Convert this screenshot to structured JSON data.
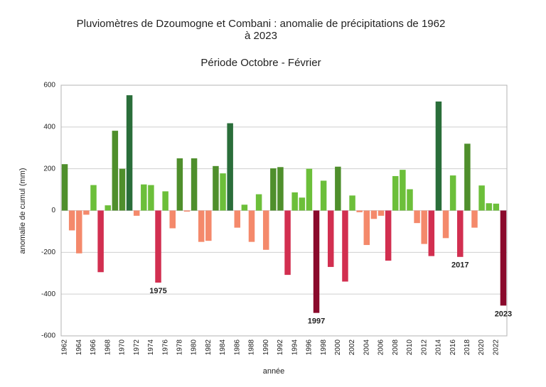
{
  "chart_data": {
    "type": "bar",
    "title": [
      "Pluviomètres de Dzoumogne et Combani : anomalie de précipitations de 1962",
      "à 2023"
    ],
    "subtitle": "Période Octobre - Février",
    "x_label": "année",
    "y_label": "anomalie de cumul (mm)",
    "categories": [
      "1962",
      null,
      "1964",
      null,
      "1966",
      null,
      "1968",
      null,
      "1970",
      null,
      "1972",
      null,
      "1974",
      null,
      "1976",
      null,
      "1978",
      null,
      "1980",
      null,
      "1982",
      null,
      "1984",
      null,
      "1986",
      null,
      "1988",
      null,
      "1990",
      null,
      "1992",
      null,
      "1994",
      null,
      "1996",
      null,
      "1998",
      null,
      "2000",
      null,
      "2002",
      null,
      "2004",
      null,
      "2006",
      null,
      "2008",
      null,
      "2010",
      null,
      "2012",
      null,
      "2014",
      null,
      "2016",
      null,
      "2018",
      null,
      "2020",
      null,
      "2022",
      null
    ],
    "values": [
      222,
      -95,
      -205,
      -20,
      122,
      -295,
      25,
      382,
      200,
      552,
      -25,
      125,
      122,
      -345,
      92,
      -85,
      250,
      -5,
      250,
      -150,
      -145,
      213,
      178,
      418,
      -82,
      28,
      -150,
      78,
      -188,
      202,
      208,
      -308,
      87,
      62,
      200,
      -490,
      143,
      -270,
      210,
      -340,
      72,
      -8,
      -165,
      -40,
      -25,
      -240,
      165,
      195,
      102,
      -60,
      -160,
      -218,
      522,
      -132,
      168,
      -222,
      320,
      -82,
      120,
      35,
      33,
      -455
    ],
    "colors": [
      "#4f8f2c",
      "#f4896b",
      "#f4896b",
      "#f4896b",
      "#6cbf3a",
      "#d22f50",
      "#6cbf3a",
      "#4f8f2c",
      "#4f8f2c",
      "#2a6e3a",
      "#f4896b",
      "#6cbf3a",
      "#6cbf3a",
      "#d22f50",
      "#6cbf3a",
      "#f4896b",
      "#4f8f2c",
      "#f4896b",
      "#4f8f2c",
      "#f4896b",
      "#f4896b",
      "#4f8f2c",
      "#6cbf3a",
      "#2a6e3a",
      "#f4896b",
      "#6cbf3a",
      "#f4896b",
      "#6cbf3a",
      "#f4896b",
      "#4f8f2c",
      "#4f8f2c",
      "#d22f50",
      "#6cbf3a",
      "#6cbf3a",
      "#6cbf3a",
      "#8a0a2c",
      "#6cbf3a",
      "#d22f50",
      "#4f8f2c",
      "#d22f50",
      "#6cbf3a",
      "#f4896b",
      "#f4896b",
      "#f4896b",
      "#f4896b",
      "#d22f50",
      "#6cbf3a",
      "#6cbf3a",
      "#6cbf3a",
      "#f4896b",
      "#f4896b",
      "#d22f50",
      "#2a6e3a",
      "#f4896b",
      "#6cbf3a",
      "#d22f50",
      "#4f8f2c",
      "#f4896b",
      "#6cbf3a",
      "#6cbf3a",
      "#6cbf3a",
      "#8a0a2c"
    ],
    "annotations": [
      "1975",
      "1997",
      "2017",
      "2023"
    ],
    "ylim": [
      -600,
      600
    ],
    "yticks": [
      -600,
      -400,
      -200,
      0,
      200,
      400,
      600
    ],
    "grid": true
  }
}
